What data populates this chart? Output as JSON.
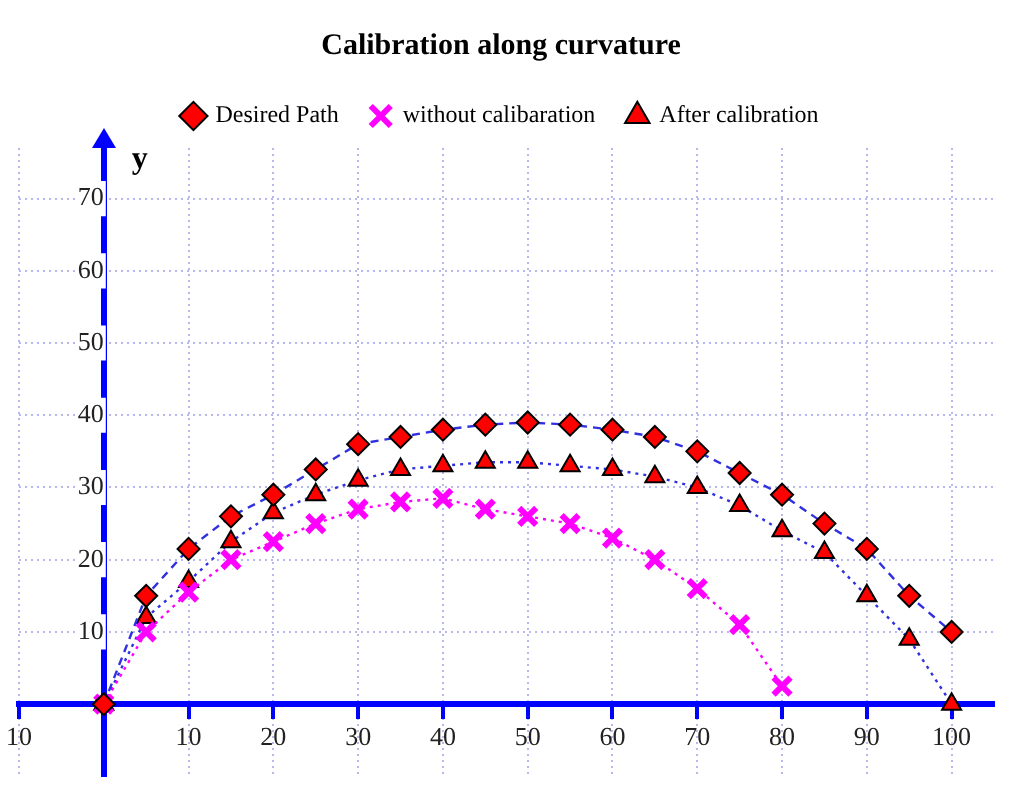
{
  "chart_data": {
    "type": "line",
    "title": "Calibration along curvature",
    "ylabel": "y",
    "xlim": [
      -10,
      105
    ],
    "ylim": [
      -10,
      77
    ],
    "xticks": [
      {
        "value": -10,
        "label": "10"
      },
      10,
      20,
      30,
      40,
      50,
      60,
      70,
      80,
      90,
      100
    ],
    "yticks": [
      10,
      20,
      30,
      40,
      50,
      60,
      70
    ],
    "grid": true,
    "legend": "top",
    "series": [
      {
        "name": "Desired Path",
        "color": "#ff0000",
        "marker": "diamond",
        "line_style": "dashed",
        "x": [
          0,
          5,
          10,
          15,
          20,
          25,
          30,
          35,
          40,
          45,
          50,
          55,
          60,
          65,
          70,
          75,
          80,
          85,
          90,
          95,
          100
        ],
        "values": [
          0,
          15,
          21.5,
          26,
          29,
          32.5,
          36,
          37,
          38,
          38.7,
          39,
          38.7,
          38,
          37,
          35,
          32,
          29,
          25,
          21.5,
          15,
          10
        ]
      },
      {
        "name": "without calibaration",
        "color": "#ff00ff",
        "marker": "cross",
        "line_style": "dotted",
        "x": [
          0,
          5,
          10,
          15,
          20,
          25,
          30,
          35,
          40,
          45,
          50,
          55,
          60,
          65,
          70,
          75,
          80
        ],
        "values": [
          0,
          10,
          15.5,
          20,
          22.5,
          25,
          27,
          28,
          28.5,
          27,
          26,
          25,
          23,
          20,
          16,
          11,
          2.5
        ]
      },
      {
        "name": "After calibration",
        "color": "#ff0000",
        "marker": "triangle",
        "line_style": "dotted",
        "x": [
          0,
          5,
          10,
          15,
          20,
          25,
          30,
          35,
          40,
          45,
          50,
          55,
          60,
          65,
          70,
          75,
          80,
          85,
          90,
          95,
          100
        ],
        "values": [
          0,
          12,
          17,
          22.5,
          26.5,
          29,
          31,
          32.5,
          33,
          33.5,
          33.5,
          33,
          32.5,
          31.5,
          30,
          27.5,
          24,
          21,
          15,
          9,
          0
        ]
      }
    ]
  }
}
